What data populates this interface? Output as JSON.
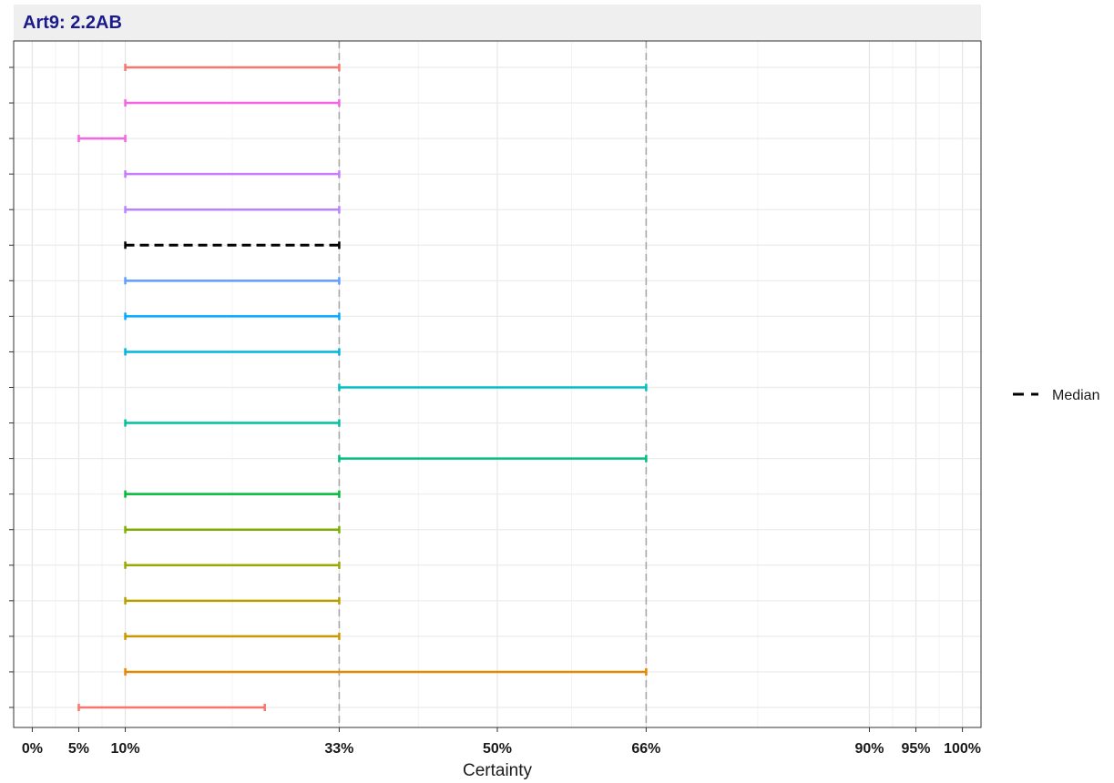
{
  "chart_data": {
    "type": "interval",
    "title": "Art9: 2.2AB",
    "xlabel": "Certainty",
    "ylabel": "",
    "xlim": [
      -0.02,
      1.02
    ],
    "x_ticks": [
      {
        "value": 0.0,
        "label": "0%"
      },
      {
        "value": 0.05,
        "label": "5%"
      },
      {
        "value": 0.1,
        "label": "10%"
      },
      {
        "value": 0.33,
        "label": "33%"
      },
      {
        "value": 0.5,
        "label": "50%"
      },
      {
        "value": 0.66,
        "label": "66%"
      },
      {
        "value": 0.9,
        "label": "90%"
      },
      {
        "value": 0.95,
        "label": "95%"
      },
      {
        "value": 1.0,
        "label": "100%"
      }
    ],
    "reference_lines": [
      0.33,
      0.66
    ],
    "grid": true,
    "legend": {
      "position": "right",
      "entries": [
        "Median"
      ]
    },
    "intervals": [
      {
        "low": 0.1,
        "high": 0.33,
        "color": "#F8766D"
      },
      {
        "low": 0.1,
        "high": 0.33,
        "color": "#F564E3"
      },
      {
        "low": 0.05,
        "high": 0.1,
        "color": "#F564E3"
      },
      {
        "low": 0.1,
        "high": 0.33,
        "color": "#C77CFF"
      },
      {
        "low": 0.1,
        "high": 0.33,
        "color": "#B983FF"
      },
      {
        "low": 0.1,
        "high": 0.33,
        "color": "#000000",
        "median": true
      },
      {
        "low": 0.1,
        "high": 0.33,
        "color": "#619CFF"
      },
      {
        "low": 0.1,
        "high": 0.33,
        "color": "#00A9FF"
      },
      {
        "low": 0.1,
        "high": 0.33,
        "color": "#00B4E0"
      },
      {
        "low": 0.33,
        "high": 0.66,
        "color": "#00BFC4"
      },
      {
        "low": 0.1,
        "high": 0.33,
        "color": "#00BFA0"
      },
      {
        "low": 0.33,
        "high": 0.66,
        "color": "#00BF7D"
      },
      {
        "low": 0.1,
        "high": 0.33,
        "color": "#00BA38"
      },
      {
        "low": 0.1,
        "high": 0.33,
        "color": "#7CAE00"
      },
      {
        "low": 0.1,
        "high": 0.33,
        "color": "#9AA800"
      },
      {
        "low": 0.1,
        "high": 0.33,
        "color": "#B79F00"
      },
      {
        "low": 0.1,
        "high": 0.33,
        "color": "#C99800"
      },
      {
        "low": 0.1,
        "high": 0.66,
        "color": "#E58700"
      },
      {
        "low": 0.05,
        "high": 0.25,
        "color": "#F8766D"
      }
    ]
  }
}
